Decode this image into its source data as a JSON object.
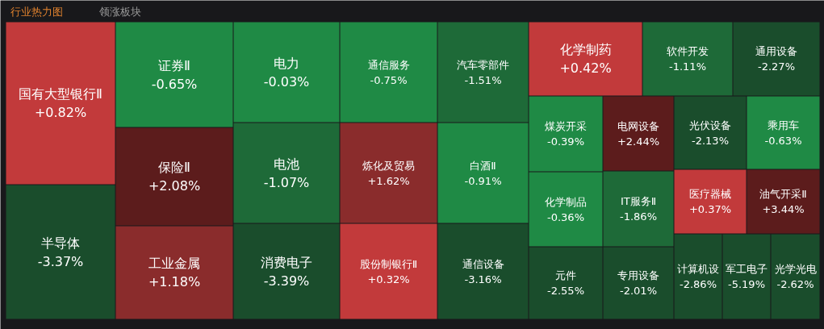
{
  "chart_data": {
    "type": "other",
    "title": "行业热力图",
    "annotations": [
      "领涨板块"
    ],
    "categories": [
      "国有大型银行Ⅱ",
      "半导体",
      "证券Ⅱ",
      "保险Ⅱ",
      "工业金属",
      "电力",
      "电池",
      "消费电子",
      "通信服务",
      "炼化及贸易",
      "股份制银行Ⅱ",
      "汽车零部件",
      "白酒Ⅱ",
      "通信设备",
      "化学制药",
      "软件开发",
      "通用设备",
      "煤炭开采",
      "化学制品",
      "元件",
      "电网设备",
      "IT服务Ⅱ",
      "专用设备",
      "光伏设备",
      "乘用车",
      "医疗器械",
      "油气开采Ⅱ",
      "计算机设",
      "军工电子",
      "光学光电"
    ],
    "values": [
      0.82,
      -3.37,
      -0.65,
      2.08,
      1.18,
      -0.03,
      -1.07,
      -3.39,
      -0.75,
      1.62,
      0.32,
      -1.51,
      -0.91,
      -3.16,
      0.42,
      -1.11,
      -2.27,
      -0.39,
      -0.36,
      -2.55,
      2.44,
      -1.86,
      -2.01,
      -2.13,
      -0.63,
      0.37,
      3.44,
      -2.86,
      -5.19,
      -2.62
    ],
    "value_labels": [
      "+0.82%",
      "-3.37%",
      "-0.65%",
      "+2.08%",
      "+1.18%",
      "-0.03%",
      "-1.07%",
      "-3.39%",
      "-0.75%",
      "+1.62%",
      "+0.32%",
      "-1.51%",
      "-0.91%",
      "-3.16%",
      "+0.42%",
      "-1.11%",
      "-2.27%",
      "-0.39%",
      "-0.36%",
      "-2.55%",
      "+2.44%",
      "-1.86%",
      "-2.01%",
      "-2.13%",
      "-0.63%",
      "+0.37%",
      "+3.44%",
      "-2.86%",
      "-5.19%",
      "-2.62%"
    ]
  }
}
